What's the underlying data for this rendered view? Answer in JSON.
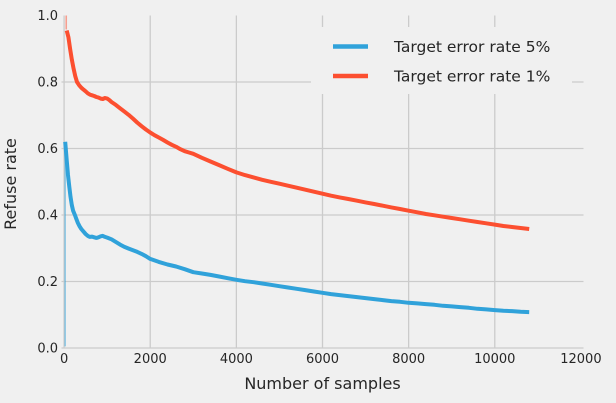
{
  "chart_data": {
    "type": "line",
    "style": "fivethirtyeight",
    "xlabel": "Number of samples",
    "ylabel": "Refuse rate",
    "xlim": [
      -60,
      12060
    ],
    "ylim": [
      0.0,
      1.0
    ],
    "grid": true,
    "legend_position": "upper right",
    "background_color": "#f0f0f0",
    "gridline_color": "#cbcbcb",
    "text_color": "#262626",
    "xticks": {
      "values": [
        0,
        2000,
        4000,
        6000,
        8000,
        10000,
        12000
      ],
      "labels": [
        "0",
        "2000",
        "4000",
        "6000",
        "8000",
        "10000",
        "12000"
      ]
    },
    "yticks": {
      "values": [
        0.0,
        0.2,
        0.4,
        0.6,
        0.8,
        1.0
      ],
      "labels": [
        "0.0",
        "0.2",
        "0.4",
        "0.6",
        "0.8",
        "1.0"
      ]
    },
    "series": [
      {
        "name": "target-error-rate-5pct",
        "label": "Target error rate 5%",
        "color": "#30a2da",
        "start_spike": {
          "x": 25,
          "from": 0.005,
          "to": 0.62
        },
        "points": [
          [
            25,
            0.62
          ],
          [
            60,
            0.565
          ],
          [
            90,
            0.52
          ],
          [
            120,
            0.485
          ],
          [
            150,
            0.455
          ],
          [
            180,
            0.43
          ],
          [
            210,
            0.413
          ],
          [
            250,
            0.4
          ],
          [
            280,
            0.39
          ],
          [
            320,
            0.376
          ],
          [
            360,
            0.366
          ],
          [
            400,
            0.358
          ],
          [
            450,
            0.35
          ],
          [
            500,
            0.343
          ],
          [
            550,
            0.337
          ],
          [
            600,
            0.334
          ],
          [
            650,
            0.335
          ],
          [
            700,
            0.333
          ],
          [
            750,
            0.331
          ],
          [
            800,
            0.333
          ],
          [
            850,
            0.336
          ],
          [
            900,
            0.337
          ],
          [
            950,
            0.334
          ],
          [
            1000,
            0.332
          ],
          [
            1100,
            0.327
          ],
          [
            1200,
            0.319
          ],
          [
            1300,
            0.311
          ],
          [
            1400,
            0.304
          ],
          [
            1500,
            0.299
          ],
          [
            1600,
            0.294
          ],
          [
            1700,
            0.289
          ],
          [
            1800,
            0.283
          ],
          [
            1900,
            0.276
          ],
          [
            2000,
            0.268
          ],
          [
            2200,
            0.259
          ],
          [
            2400,
            0.251
          ],
          [
            2600,
            0.245
          ],
          [
            2800,
            0.237
          ],
          [
            3000,
            0.228
          ],
          [
            3200,
            0.224
          ],
          [
            3400,
            0.22
          ],
          [
            3600,
            0.215
          ],
          [
            3800,
            0.21
          ],
          [
            4000,
            0.205
          ],
          [
            4200,
            0.201
          ],
          [
            4400,
            0.198
          ],
          [
            4600,
            0.194
          ],
          [
            4800,
            0.19
          ],
          [
            5000,
            0.186
          ],
          [
            5200,
            0.182
          ],
          [
            5400,
            0.178
          ],
          [
            5600,
            0.174
          ],
          [
            5800,
            0.17
          ],
          [
            6000,
            0.166
          ],
          [
            6200,
            0.162
          ],
          [
            6400,
            0.159
          ],
          [
            6600,
            0.156
          ],
          [
            6800,
            0.153
          ],
          [
            7000,
            0.15
          ],
          [
            7200,
            0.147
          ],
          [
            7400,
            0.144
          ],
          [
            7600,
            0.141
          ],
          [
            7800,
            0.139
          ],
          [
            8000,
            0.136
          ],
          [
            8200,
            0.134
          ],
          [
            8400,
            0.132
          ],
          [
            8600,
            0.13
          ],
          [
            8800,
            0.127
          ],
          [
            9000,
            0.125
          ],
          [
            9200,
            0.123
          ],
          [
            9400,
            0.121
          ],
          [
            9600,
            0.118
          ],
          [
            9800,
            0.116
          ],
          [
            10000,
            0.114
          ],
          [
            10200,
            0.112
          ],
          [
            10400,
            0.111
          ],
          [
            10600,
            0.109
          ],
          [
            10800,
            0.108
          ]
        ]
      },
      {
        "name": "target-error-rate-1pct",
        "label": "Target error rate 1%",
        "color": "#fc4f30",
        "start_spike": {
          "x": 50,
          "from": 1.0,
          "to": 0.958
        },
        "points": [
          [
            60,
            0.955
          ],
          [
            100,
            0.935
          ],
          [
            140,
            0.9
          ],
          [
            180,
            0.868
          ],
          [
            220,
            0.84
          ],
          [
            260,
            0.817
          ],
          [
            300,
            0.8
          ],
          [
            350,
            0.79
          ],
          [
            400,
            0.783
          ],
          [
            450,
            0.777
          ],
          [
            500,
            0.772
          ],
          [
            550,
            0.766
          ],
          [
            600,
            0.762
          ],
          [
            650,
            0.76
          ],
          [
            700,
            0.758
          ],
          [
            750,
            0.755
          ],
          [
            800,
            0.753
          ],
          [
            850,
            0.75
          ],
          [
            900,
            0.749
          ],
          [
            950,
            0.752
          ],
          [
            1000,
            0.75
          ],
          [
            1050,
            0.746
          ],
          [
            1100,
            0.74
          ],
          [
            1200,
            0.731
          ],
          [
            1300,
            0.721
          ],
          [
            1400,
            0.711
          ],
          [
            1500,
            0.701
          ],
          [
            1600,
            0.69
          ],
          [
            1700,
            0.678
          ],
          [
            1800,
            0.667
          ],
          [
            1900,
            0.657
          ],
          [
            2000,
            0.648
          ],
          [
            2100,
            0.64
          ],
          [
            2200,
            0.633
          ],
          [
            2300,
            0.626
          ],
          [
            2400,
            0.618
          ],
          [
            2500,
            0.611
          ],
          [
            2600,
            0.605
          ],
          [
            2700,
            0.598
          ],
          [
            2800,
            0.592
          ],
          [
            2900,
            0.588
          ],
          [
            3000,
            0.584
          ],
          [
            3200,
            0.572
          ],
          [
            3400,
            0.561
          ],
          [
            3600,
            0.55
          ],
          [
            3800,
            0.539
          ],
          [
            4000,
            0.528
          ],
          [
            4200,
            0.52
          ],
          [
            4400,
            0.513
          ],
          [
            4600,
            0.506
          ],
          [
            4800,
            0.5
          ],
          [
            5000,
            0.494
          ],
          [
            5200,
            0.488
          ],
          [
            5400,
            0.482
          ],
          [
            5600,
            0.476
          ],
          [
            5800,
            0.47
          ],
          [
            6000,
            0.464
          ],
          [
            6200,
            0.458
          ],
          [
            6400,
            0.453
          ],
          [
            6600,
            0.448
          ],
          [
            6800,
            0.443
          ],
          [
            7000,
            0.438
          ],
          [
            7200,
            0.433
          ],
          [
            7400,
            0.428
          ],
          [
            7600,
            0.423
          ],
          [
            7800,
            0.418
          ],
          [
            8000,
            0.413
          ],
          [
            8200,
            0.408
          ],
          [
            8400,
            0.403
          ],
          [
            8600,
            0.399
          ],
          [
            8800,
            0.395
          ],
          [
            9000,
            0.391
          ],
          [
            9200,
            0.387
          ],
          [
            9400,
            0.383
          ],
          [
            9600,
            0.379
          ],
          [
            9800,
            0.375
          ],
          [
            10000,
            0.371
          ],
          [
            10200,
            0.367
          ],
          [
            10400,
            0.364
          ],
          [
            10600,
            0.361
          ],
          [
            10800,
            0.358
          ]
        ]
      }
    ]
  }
}
